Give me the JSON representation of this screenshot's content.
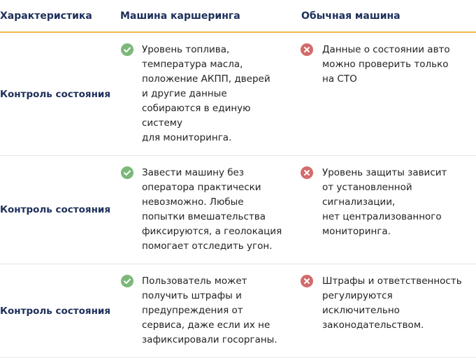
{
  "header": [
    "Характеристика",
    "Машина каршеринга",
    "Обычная машина"
  ],
  "rows": [
    {
      "label": "Контроль состояния",
      "sharing": [
        "Уровень топлива,",
        "температура масла,",
        "положение АКПП, дверей",
        "и другие данные",
        "собираются в единую",
        "систему",
        "для мониторинга."
      ],
      "regular": [
        "Данные о состоянии авто",
        "можно проверить только",
        "на СТО"
      ]
    },
    {
      "label": "Контроль состояния",
      "sharing": [
        "Завести машину без",
        "оператора практически",
        "невозможно. Любые",
        "попытки вмешательства",
        "фиксируются, а геолокация",
        "помогает отследить угон."
      ],
      "regular": [
        "Уровень защиты зависит",
        "от установленной",
        "сигнализации,",
        "нет централизованного",
        "мониторинга."
      ]
    },
    {
      "label": "Контроль состояния",
      "sharing": [
        "Пользователь может",
        "получить штрафы и",
        "предупреждения от",
        "сервиса, даже если их не",
        "зафиксировали госорганы."
      ],
      "regular": [
        "Штрафы и ответственность",
        "регулируются",
        "исключительно",
        "законодательством."
      ]
    }
  ]
}
